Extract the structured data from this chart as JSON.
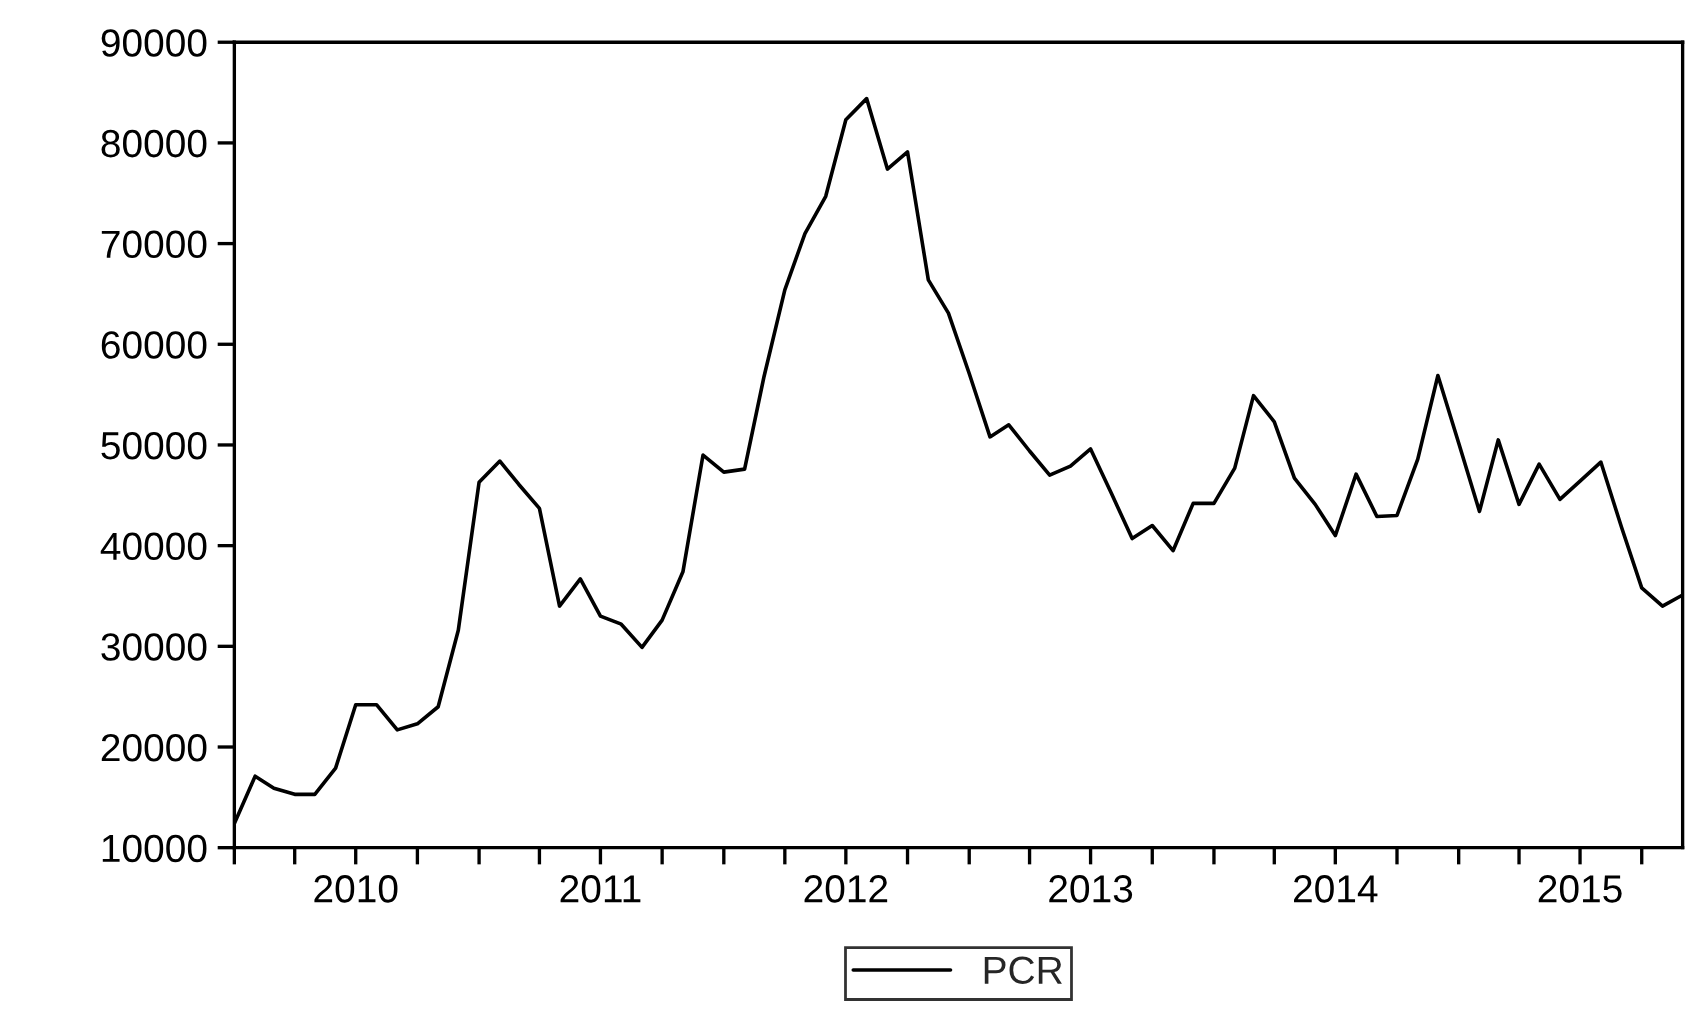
{
  "chart_data": {
    "type": "line",
    "x": [
      "2010-01",
      "2010-02",
      "2010-03",
      "2010-04",
      "2010-05",
      "2010-06",
      "2010-07",
      "2010-08",
      "2010-09",
      "2010-10",
      "2010-11",
      "2010-12",
      "2011-01",
      "2011-02",
      "2011-03",
      "2011-04",
      "2011-05",
      "2011-06",
      "2011-07",
      "2011-08",
      "2011-09",
      "2011-10",
      "2011-11",
      "2011-12",
      "2012-01",
      "2012-02",
      "2012-03",
      "2012-04",
      "2012-05",
      "2012-06",
      "2012-07",
      "2012-08",
      "2012-09",
      "2012-10",
      "2012-11",
      "2012-12",
      "2013-01",
      "2013-02",
      "2013-03",
      "2013-04",
      "2013-05",
      "2013-06",
      "2013-07",
      "2013-08",
      "2013-09",
      "2013-10",
      "2013-11",
      "2013-12",
      "2014-01",
      "2014-02",
      "2014-03",
      "2014-04",
      "2014-05",
      "2014-06",
      "2014-07",
      "2014-08",
      "2014-09",
      "2014-10",
      "2014-11",
      "2014-12",
      "2015-01",
      "2015-02",
      "2015-03",
      "2015-04",
      "2015-05",
      "2015-06",
      "2015-07",
      "2015-08",
      "2015-09",
      "2015-10",
      "2015-11",
      "2015-12"
    ],
    "series": [
      {
        "name": "PCR",
        "color": "#000000",
        "values": [
          12400,
          17100,
          15900,
          15300,
          15300,
          17900,
          24200,
          24200,
          21700,
          22300,
          24000,
          31600,
          46300,
          48400,
          46100,
          43700,
          34000,
          36700,
          33000,
          32200,
          29900,
          32600,
          37400,
          49000,
          47300,
          47600,
          56800,
          65400,
          71000,
          74700,
          82300,
          84400,
          77400,
          79100,
          66400,
          63100,
          57100,
          50800,
          52000,
          49400,
          47000,
          47900,
          49600,
          45200,
          40700,
          42000,
          39500,
          44200,
          44200,
          47700,
          54900,
          52300,
          46700,
          44100,
          41000,
          47100,
          42900,
          43000,
          48600,
          56900,
          50200,
          43400,
          50500,
          44100,
          48100,
          44600,
          46400,
          48300,
          41800,
          35800,
          34000,
          35100
        ]
      }
    ],
    "xlim": [
      "2010-01",
      "2015-12"
    ],
    "xticks": [
      {
        "value": "2010-01",
        "label": null
      },
      {
        "value": "2010-04",
        "label": null
      },
      {
        "value": "2010-07",
        "label": "2010"
      },
      {
        "value": "2010-10",
        "label": null
      },
      {
        "value": "2011-01",
        "label": null
      },
      {
        "value": "2011-04",
        "label": null
      },
      {
        "value": "2011-07",
        "label": "2011"
      },
      {
        "value": "2011-10",
        "label": null
      },
      {
        "value": "2012-01",
        "label": null
      },
      {
        "value": "2012-04",
        "label": null
      },
      {
        "value": "2012-07",
        "label": "2012"
      },
      {
        "value": "2012-10",
        "label": null
      },
      {
        "value": "2013-01",
        "label": null
      },
      {
        "value": "2013-04",
        "label": null
      },
      {
        "value": "2013-07",
        "label": "2013"
      },
      {
        "value": "2013-10",
        "label": null
      },
      {
        "value": "2014-01",
        "label": null
      },
      {
        "value": "2014-04",
        "label": null
      },
      {
        "value": "2014-07",
        "label": "2014"
      },
      {
        "value": "2014-10",
        "label": null
      },
      {
        "value": "2015-01",
        "label": null
      },
      {
        "value": "2015-04",
        "label": null
      },
      {
        "value": "2015-07",
        "label": "2015"
      },
      {
        "value": "2015-10",
        "label": null
      }
    ],
    "ylim": [
      10000,
      90000
    ],
    "yticks": [
      10000,
      20000,
      30000,
      40000,
      50000,
      60000,
      70000,
      80000,
      90000
    ],
    "grid": false,
    "legend": "bottom",
    "line_style": "solid",
    "marker": "none"
  }
}
